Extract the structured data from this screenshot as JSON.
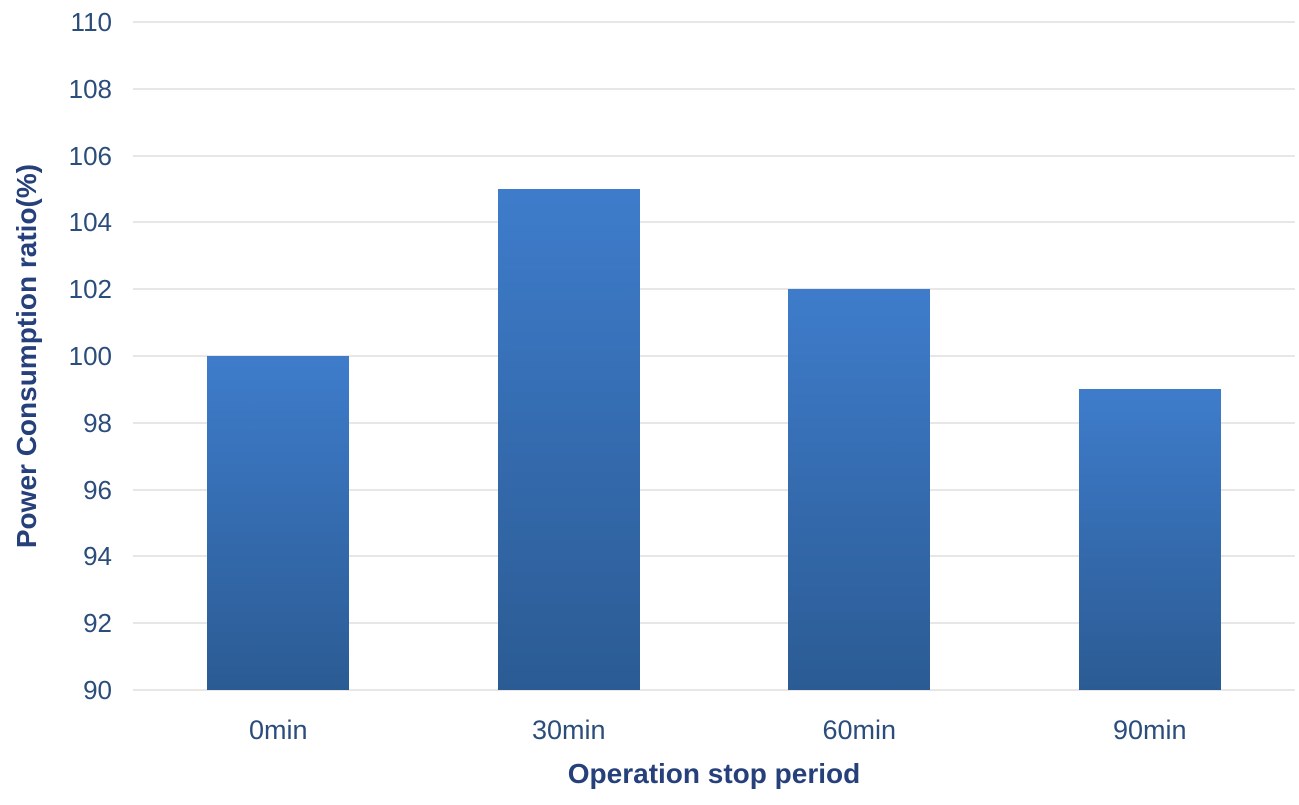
{
  "chart_data": {
    "type": "bar",
    "categories": [
      "0min",
      "30min",
      "60min",
      "90min"
    ],
    "values": [
      100,
      105,
      102,
      99
    ],
    "title": "",
    "xlabel": "Operation stop period",
    "ylabel": "Power Consumption ratio(%)",
    "ylim": [
      90,
      110
    ],
    "yticks": [
      110,
      108,
      106,
      104,
      102,
      100,
      98,
      96,
      94,
      92,
      90
    ],
    "grid": true,
    "legend_position": "none",
    "bar_slot_fill_ratio": 0.49,
    "styles": {
      "bar_gradient_top": "#3e7ccb",
      "bar_gradient_bottom": "#2b5b93",
      "tick_label_color": "#2b4d7c",
      "axis_title_color": "#26407b",
      "gridline_color": "#e9e6e6",
      "background": "#ffffff"
    }
  }
}
